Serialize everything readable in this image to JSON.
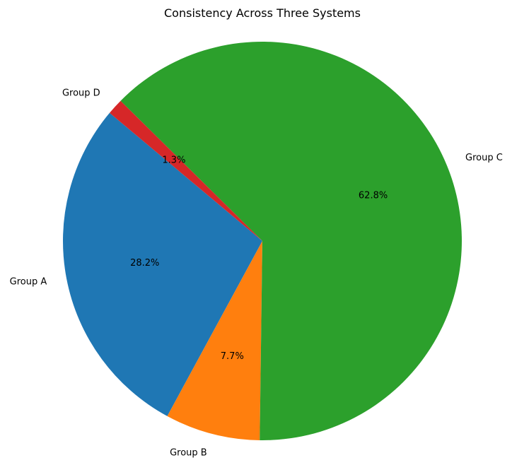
{
  "chart_data": {
    "type": "pie",
    "title": "Consistency Across Three Systems",
    "categories": [
      "Group A",
      "Group B",
      "Group C",
      "Group D"
    ],
    "values": [
      28.2,
      7.7,
      62.8,
      1.3
    ],
    "value_labels": [
      "28.2%",
      "7.7%",
      "62.8%",
      "1.3%"
    ],
    "colors": [
      "#1f77b4",
      "#ff7f0e",
      "#2ca02c",
      "#d62728"
    ],
    "start_angle_deg": 140,
    "direction": "counterclockwise"
  }
}
